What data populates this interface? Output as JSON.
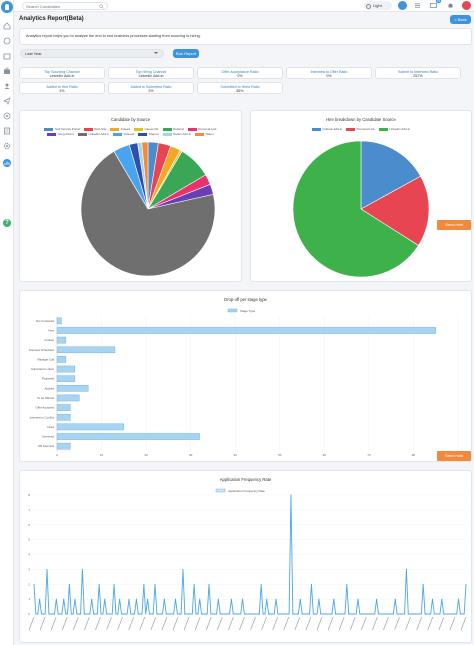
{
  "topbar": {
    "search_placeholder": "Search Candidates",
    "theme_label": "Light",
    "notification_count": "15"
  },
  "header": {
    "title": "Analytics Report(Beta)",
    "back_label": "< Back",
    "intro": "Analytics report helps you to analyze the end to end business processes starting from sourcing to hiring."
  },
  "filters": {
    "period_value": "Last Year",
    "run_label": "Run Report"
  },
  "kpis": [
    {
      "label": "Top Sourcing Channel",
      "value": "LinkedIn Add-in"
    },
    {
      "label": "Top Hiring Channel",
      "value": "LinkedIn Add-in"
    },
    {
      "label": "Offer Acceptance Ratio",
      "value": "0%"
    },
    {
      "label": "Interview to Offer Ratio",
      "value": "0%"
    },
    {
      "label": "Submit to Interview Ratio",
      "value": "257%"
    },
    {
      "label": "Added to Hire Ratio",
      "value": "3%"
    },
    {
      "label": "Added to Submitted Ratio",
      "value": "3%"
    },
    {
      "label": "Submitted to Hired Ratio",
      "value": "85%"
    }
  ],
  "buttons": {
    "send_mini": "Send mini",
    "send_mini_2": "Send mini"
  },
  "chart_data": [
    {
      "type": "pie",
      "title": "Candidate by Source",
      "series": [
        {
          "name": "Self Service Portal",
          "value": 2.5,
          "color": "#4a8ccc"
        },
        {
          "name": "Web Site",
          "value": 3,
          "color": "#e84553"
        },
        {
          "name": "Indeed",
          "value": 2.5,
          "color": "#f6a623"
        },
        {
          "name": "Career ML",
          "value": 0.5,
          "color": "#d4c91f"
        },
        {
          "name": "Referral",
          "value": 8,
          "color": "#3aa757"
        },
        {
          "name": "Personal Link",
          "value": 2.5,
          "color": "#e8326e"
        },
        {
          "name": "Greg Add-in",
          "value": 2.5,
          "color": "#6a3fb5"
        },
        {
          "name": "LinkedIn Add-in",
          "value": 70,
          "color": "#6f6f6f"
        },
        {
          "name": "Indexed",
          "value": 4,
          "color": "#49a4f0"
        },
        {
          "name": "Shared",
          "value": 2,
          "color": "#2d4fae"
        },
        {
          "name": "Naukri Add-in",
          "value": 1,
          "color": "#a1d8e8"
        },
        {
          "name": "Talent",
          "value": 1.5,
          "color": "#f28a3d"
        }
      ]
    },
    {
      "type": "pie",
      "title": "Hire breakdown by Candidate Source",
      "series": [
        {
          "name": "Outlook Add-in",
          "value": 17,
          "color": "#4a8ccc"
        },
        {
          "name": "Personal Link",
          "value": 17,
          "color": "#e84553"
        },
        {
          "name": "LinkedIn Add-in",
          "value": 66,
          "color": "#3db24b"
        }
      ]
    },
    {
      "type": "bar",
      "orientation": "horizontal",
      "title": "Drop-off per stage type",
      "series_name": "Stage Type",
      "categories": [
        "Not Contacted",
        "New",
        "Contact",
        "Interview Scheduled",
        "Manager Call",
        "Submitted to client",
        "Proposed",
        "Applied",
        "To be Offered",
        "Offer Accepted",
        "Interview to Conflict",
        "Hired",
        "Screened",
        "HR Interview"
      ],
      "values": [
        1,
        85,
        2,
        13,
        2,
        4,
        4,
        7,
        5,
        3,
        3,
        15,
        32,
        3
      ],
      "xlim": [
        0,
        90
      ],
      "xticks": [
        0,
        10,
        20,
        30,
        40,
        50,
        60,
        70,
        80,
        90
      ],
      "color": "#a8d4f2",
      "border": "#5aaee6"
    },
    {
      "type": "line",
      "title": "Application Frequency Rate",
      "series_name": "Application Frequency Rate",
      "ylim": [
        0,
        8
      ],
      "yticks": [
        0,
        1,
        2,
        3,
        4,
        5,
        6,
        7,
        8
      ],
      "values": [
        2,
        0,
        0,
        1,
        0,
        0,
        0,
        3,
        0,
        0,
        0,
        0,
        1,
        0,
        0,
        0,
        1,
        0,
        0,
        2,
        0,
        0,
        1,
        0,
        0,
        0,
        3,
        0,
        0,
        0,
        0,
        1,
        0,
        0,
        0,
        2,
        0,
        0,
        1,
        0,
        0,
        0,
        0,
        2,
        0,
        0,
        1,
        0,
        0,
        0,
        0,
        1,
        0,
        0,
        0,
        1,
        0,
        0,
        0,
        2,
        0,
        1,
        0,
        0,
        0,
        2,
        0,
        0,
        0,
        0,
        1,
        0,
        0,
        0,
        0,
        0,
        1,
        0,
        0,
        0,
        3,
        0,
        0,
        0,
        0,
        0,
        2,
        0,
        0,
        1,
        0,
        0,
        0,
        0,
        2,
        0,
        0,
        0,
        0,
        1,
        0,
        0,
        0,
        0,
        0,
        0,
        1,
        0,
        0,
        0,
        0,
        0,
        1,
        0,
        0,
        0,
        0,
        0,
        0,
        0,
        0,
        0,
        2,
        0,
        0,
        1,
        0,
        0,
        0,
        0,
        1,
        0,
        0,
        0,
        0,
        0,
        0,
        0,
        8,
        0,
        0,
        0,
        0,
        1,
        0,
        0,
        0,
        0,
        0,
        2,
        0,
        0,
        0,
        1,
        0,
        0,
        0,
        0,
        0,
        0,
        0,
        1,
        0,
        0,
        0,
        0,
        0,
        0,
        2,
        0,
        0,
        0,
        0,
        0,
        1,
        0,
        0,
        0,
        0,
        0,
        0,
        0,
        0,
        0,
        1,
        0,
        0,
        0,
        0,
        0,
        0,
        0,
        0,
        0,
        1,
        0,
        0,
        0,
        0,
        0,
        3,
        0,
        0,
        0,
        0,
        0,
        0,
        0,
        0,
        2,
        0,
        0,
        0,
        0,
        1,
        0,
        0,
        0,
        0,
        1,
        0,
        0,
        0,
        0,
        0,
        0,
        0,
        0,
        1,
        0,
        0,
        0,
        2
      ],
      "color": "#4aa8e8"
    }
  ]
}
